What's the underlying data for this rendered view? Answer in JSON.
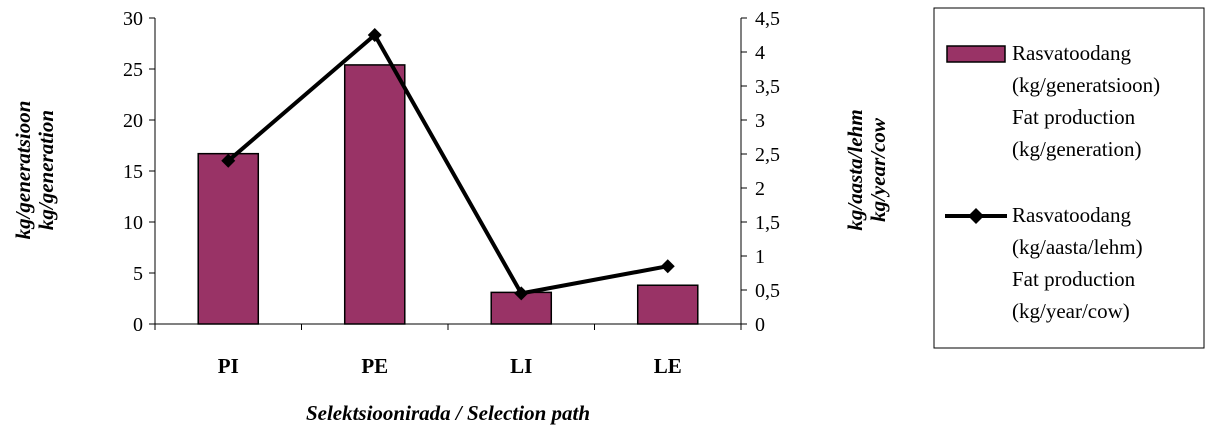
{
  "chart_data": {
    "type": "bar+line",
    "categories": [
      "PI",
      "PE",
      "LI",
      "LE"
    ],
    "series": [
      {
        "name": "Rasvatoodang (kg/generatsioon) Fat production (kg/generation)",
        "kind": "bar",
        "axis": "left",
        "values": [
          16.7,
          25.4,
          3.1,
          3.8
        ]
      },
      {
        "name": "Rasvatoodang (kg/aasta/lehm) Fat production (kg/year/cow)",
        "kind": "line",
        "axis": "right",
        "values": [
          2.4,
          4.25,
          0.45,
          0.85
        ]
      }
    ],
    "y_left": {
      "label_lines": [
        "kg/generatsioon",
        "kg/generation"
      ],
      "lim": [
        0,
        30
      ],
      "ticks": [
        "0",
        "5",
        "10",
        "15",
        "20",
        "25",
        "30"
      ]
    },
    "y_right": {
      "label_lines": [
        "kg/aasta/lehm",
        "kg/year/cow"
      ],
      "lim": [
        0,
        4.5
      ],
      "ticks": [
        "0",
        "0,5",
        "1",
        "1,5",
        "2",
        "2,5",
        "3",
        "3,5",
        "4",
        "4,5"
      ]
    },
    "xlabel": "Selektsioonirada / Selection path",
    "grid": false,
    "legend_position": "right",
    "legend": [
      {
        "kind": "bar",
        "lines": [
          "Rasvatoodang",
          "(kg/generatsioon)",
          "Fat production",
          "(kg/generation)"
        ]
      },
      {
        "kind": "line",
        "lines": [
          "Rasvatoodang",
          "(kg/aasta/lehm)",
          "Fat production",
          "(kg/year/cow)"
        ]
      }
    ],
    "colors": {
      "bar_fill": "#993366",
      "bar_stroke": "#000000",
      "line": "#000000"
    }
  }
}
